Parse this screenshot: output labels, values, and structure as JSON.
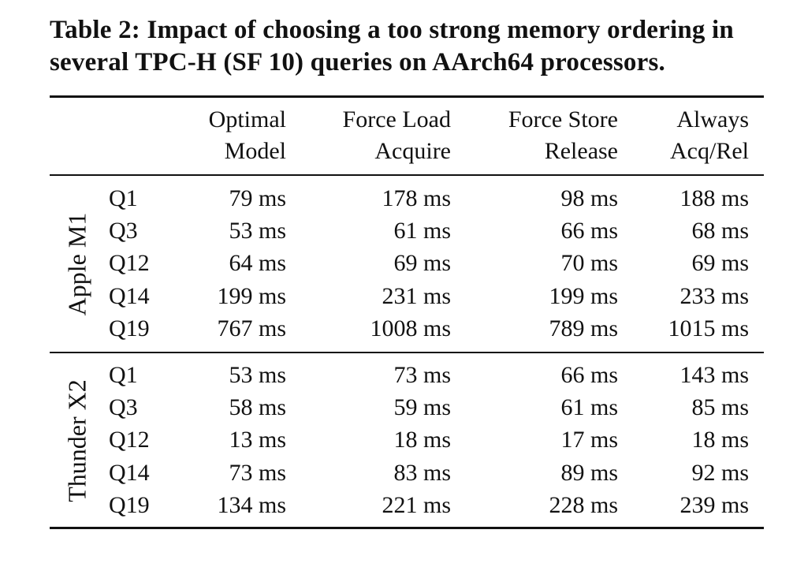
{
  "caption": "Table 2: Impact of choosing a too strong memory ordering in several TPC-H (SF 10) queries on AArch64 processors.",
  "columns": [
    {
      "line1": "Optimal",
      "line2": "Model"
    },
    {
      "line1": "Force Load",
      "line2": "Acquire"
    },
    {
      "line1": "Force Store",
      "line2": "Release"
    },
    {
      "line1": "Always",
      "line2": "Acq/Rel"
    }
  ],
  "groups": [
    {
      "label": "Apple M1",
      "rows": [
        {
          "query": "Q1",
          "values": [
            "79 ms",
            "178 ms",
            "98 ms",
            "188 ms"
          ]
        },
        {
          "query": "Q3",
          "values": [
            "53 ms",
            "61 ms",
            "66 ms",
            "68 ms"
          ]
        },
        {
          "query": "Q12",
          "values": [
            "64 ms",
            "69 ms",
            "70 ms",
            "69 ms"
          ]
        },
        {
          "query": "Q14",
          "values": [
            "199 ms",
            "231 ms",
            "199 ms",
            "233 ms"
          ]
        },
        {
          "query": "Q19",
          "values": [
            "767 ms",
            "1008 ms",
            "789 ms",
            "1015 ms"
          ]
        }
      ]
    },
    {
      "label": "Thunder X2",
      "rows": [
        {
          "query": "Q1",
          "values": [
            "53 ms",
            "73 ms",
            "66 ms",
            "143 ms"
          ]
        },
        {
          "query": "Q3",
          "values": [
            "58 ms",
            "59 ms",
            "61 ms",
            "85 ms"
          ]
        },
        {
          "query": "Q12",
          "values": [
            "13 ms",
            "18 ms",
            "17 ms",
            "18 ms"
          ]
        },
        {
          "query": "Q14",
          "values": [
            "73 ms",
            "83 ms",
            "89 ms",
            "92 ms"
          ]
        },
        {
          "query": "Q19",
          "values": [
            "134 ms",
            "221 ms",
            "228 ms",
            "239 ms"
          ]
        }
      ]
    }
  ]
}
